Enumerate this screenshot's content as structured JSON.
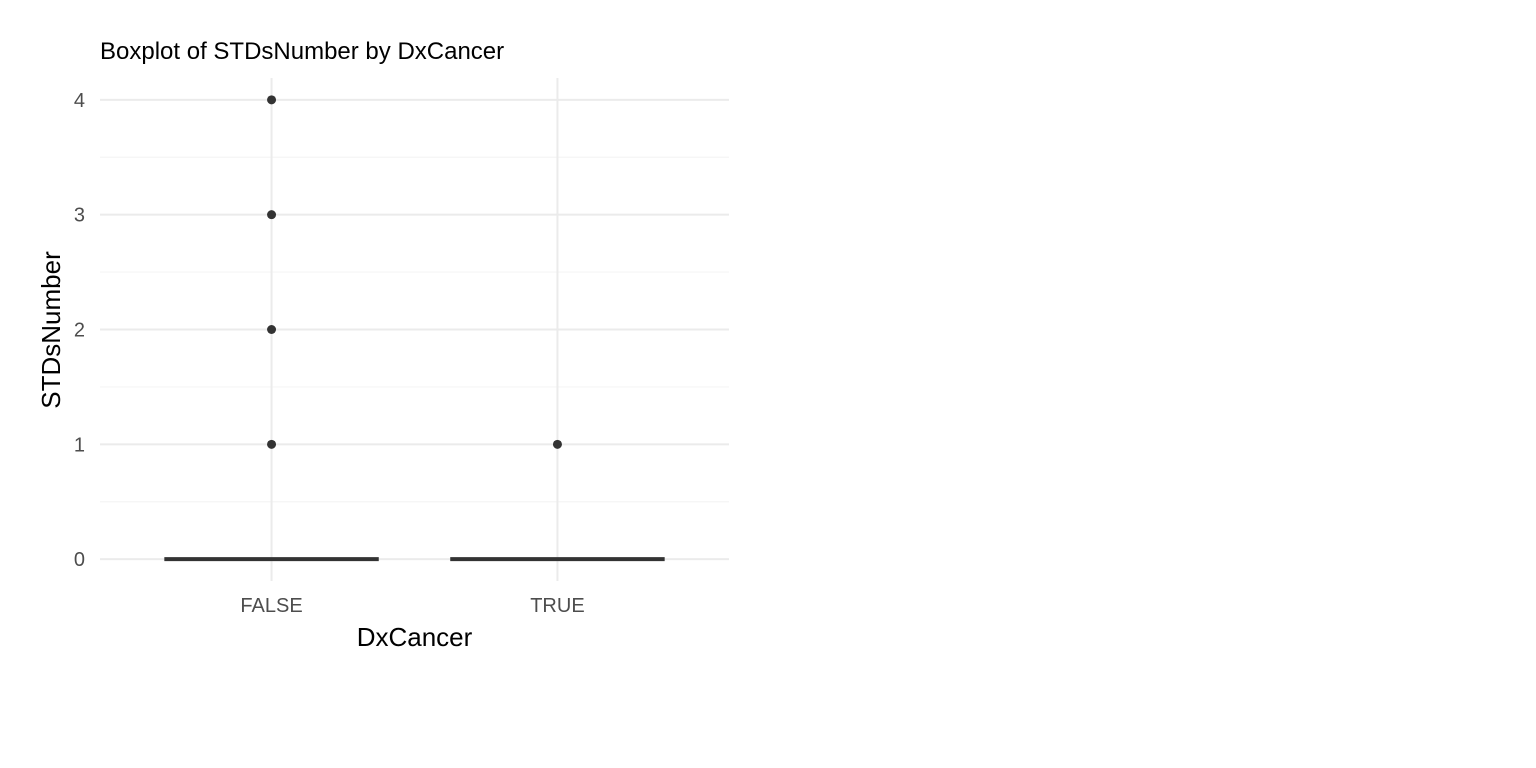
{
  "chart_data": {
    "type": "boxplot",
    "title": "Boxplot of STDsNumber by DxCancer",
    "xlabel": "DxCancer",
    "ylabel": "STDsNumber",
    "categories": [
      "FALSE",
      "TRUE"
    ],
    "yticks": [
      0,
      1,
      2,
      3,
      4
    ],
    "ylim": [
      -0.19,
      4.19
    ],
    "grid": true,
    "legend": "none",
    "colors": {
      "box": "#333333",
      "outlier": "#333333",
      "grid_major": "#ebebeb",
      "grid_minor": "#f5f5f5",
      "tick_label": "#4d4d4d"
    },
    "boxes": [
      {
        "category": "FALSE",
        "min": 0,
        "q1": 0,
        "median": 0,
        "q3": 0,
        "max": 0,
        "outliers": [
          1,
          2,
          3,
          4
        ]
      },
      {
        "category": "TRUE",
        "min": 0,
        "q1": 0,
        "median": 0,
        "q3": 0,
        "max": 0,
        "outliers": [
          1
        ]
      }
    ]
  }
}
